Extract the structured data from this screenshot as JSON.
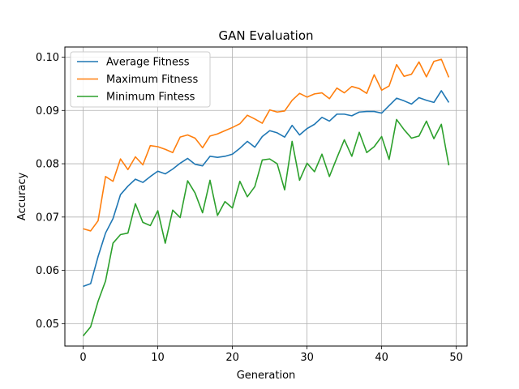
{
  "chart_data": {
    "type": "line",
    "title": "GAN Evaluation",
    "xlabel": "Generation",
    "ylabel": "Accuracy",
    "xlim": [
      -2.45,
      51.45
    ],
    "ylim": [
      0.0458,
      0.1019
    ],
    "xticks": [
      0,
      10,
      20,
      30,
      40,
      50
    ],
    "xtick_labels": [
      "0",
      "10",
      "20",
      "30",
      "40",
      "50"
    ],
    "yticks": [
      0.05,
      0.06,
      0.07,
      0.08,
      0.09,
      0.1
    ],
    "ytick_labels": [
      "0.05",
      "0.06",
      "0.07",
      "0.08",
      "0.09",
      "0.10"
    ],
    "grid": true,
    "legend_position": "upper-left",
    "x": [
      0,
      1,
      2,
      3,
      4,
      5,
      6,
      7,
      8,
      9,
      10,
      11,
      12,
      13,
      14,
      15,
      16,
      17,
      18,
      19,
      20,
      21,
      22,
      23,
      24,
      25,
      26,
      27,
      28,
      29,
      30,
      31,
      32,
      33,
      34,
      35,
      36,
      37,
      38,
      39,
      40,
      41,
      42,
      43,
      44,
      45,
      46,
      47,
      48,
      49
    ],
    "series": [
      {
        "name": "Average Fitness",
        "color": "#1f77b4",
        "values": [
          0.057,
          0.0575,
          0.0626,
          0.067,
          0.0697,
          0.0742,
          0.0758,
          0.0771,
          0.0765,
          0.0776,
          0.0786,
          0.0781,
          0.079,
          0.0801,
          0.081,
          0.0799,
          0.0796,
          0.0814,
          0.0812,
          0.0814,
          0.0818,
          0.0829,
          0.0842,
          0.0831,
          0.0851,
          0.0862,
          0.0858,
          0.085,
          0.0872,
          0.0854,
          0.0866,
          0.0874,
          0.0887,
          0.088,
          0.0893,
          0.0893,
          0.089,
          0.0897,
          0.0898,
          0.0898,
          0.0895,
          0.0909,
          0.0923,
          0.0918,
          0.0912,
          0.0924,
          0.0919,
          0.0915,
          0.0937,
          0.0915
        ]
      },
      {
        "name": "Maximum Fitness",
        "color": "#ff7f0e",
        "values": [
          0.0678,
          0.0674,
          0.0693,
          0.0776,
          0.0767,
          0.0809,
          0.0789,
          0.0813,
          0.0798,
          0.0834,
          0.0832,
          0.0827,
          0.0821,
          0.085,
          0.0854,
          0.0848,
          0.083,
          0.0852,
          0.0856,
          0.0862,
          0.0868,
          0.0875,
          0.0891,
          0.0884,
          0.0876,
          0.0901,
          0.0897,
          0.0899,
          0.0919,
          0.0932,
          0.0925,
          0.0931,
          0.0933,
          0.0922,
          0.0942,
          0.0933,
          0.0945,
          0.0941,
          0.0932,
          0.0967,
          0.0938,
          0.0946,
          0.0986,
          0.0964,
          0.0968,
          0.0991,
          0.0963,
          0.0992,
          0.0996,
          0.0962
        ]
      },
      {
        "name": "Minimum Fintess",
        "color": "#2ca02c",
        "values": [
          0.0477,
          0.0494,
          0.0542,
          0.058,
          0.0651,
          0.0667,
          0.067,
          0.0725,
          0.069,
          0.0684,
          0.0712,
          0.0651,
          0.0713,
          0.0699,
          0.0768,
          0.0745,
          0.0708,
          0.0769,
          0.0703,
          0.0729,
          0.0717,
          0.0767,
          0.0738,
          0.0757,
          0.0807,
          0.0809,
          0.08,
          0.0751,
          0.0842,
          0.0769,
          0.0801,
          0.0785,
          0.0818,
          0.0776,
          0.0811,
          0.0845,
          0.0814,
          0.0859,
          0.0821,
          0.0832,
          0.0851,
          0.0808,
          0.0883,
          0.0864,
          0.0848,
          0.0852,
          0.088,
          0.0847,
          0.0874,
          0.0797
        ]
      }
    ]
  }
}
